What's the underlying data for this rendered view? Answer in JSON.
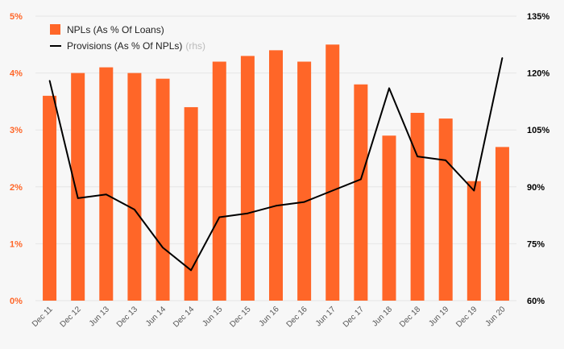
{
  "chart_data": {
    "type": "bar",
    "categories": [
      "Dec 11",
      "Dec 12",
      "Jun 13",
      "Dec 13",
      "Jun 14",
      "Dec 14",
      "Jun 15",
      "Dec 15",
      "Jun 16",
      "Dec 16",
      "Jun 17",
      "Dec 17",
      "Jun 18",
      "Dec 18",
      "Jun 19",
      "Dec 19",
      "Jun 20"
    ],
    "series": [
      {
        "name": "NPLs (As % Of Loans)",
        "kind": "bar",
        "axis": "left",
        "color": "#ff6628",
        "values": [
          3.6,
          4.0,
          4.1,
          4.0,
          3.9,
          3.4,
          4.2,
          4.3,
          4.4,
          4.2,
          4.5,
          3.8,
          2.9,
          3.3,
          3.2,
          2.1,
          2.7
        ]
      },
      {
        "name": "Provisions (As % Of NPLs)",
        "name_suffix": "(rhs)",
        "kind": "line",
        "axis": "right",
        "color": "#000000",
        "values": [
          118,
          87,
          88,
          84,
          74,
          68,
          82,
          83,
          85,
          86,
          89,
          92,
          116,
          98,
          97,
          89,
          124
        ]
      }
    ],
    "y_left": {
      "ylim": [
        0,
        5
      ],
      "ticks": [
        "0%",
        "1%",
        "2%",
        "3%",
        "4%",
        "5%"
      ]
    },
    "y_right": {
      "ylim": [
        60,
        135
      ],
      "ticks": [
        "60%",
        "75%",
        "90%",
        "105%",
        "120%",
        "135%"
      ]
    },
    "grid": true,
    "legend_position": "top-left"
  }
}
